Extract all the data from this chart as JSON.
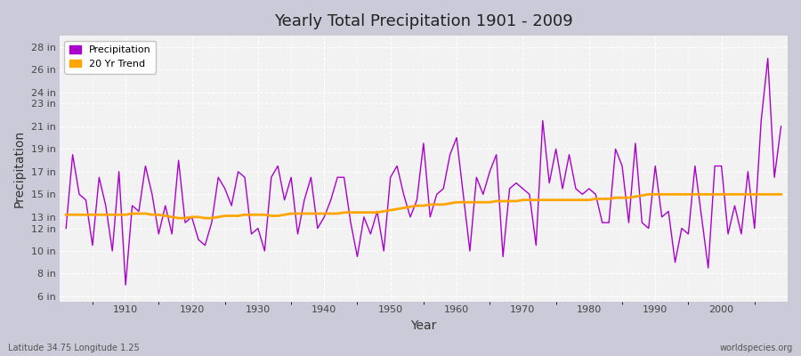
{
  "title": "Yearly Total Precipitation 1901 - 2009",
  "xlabel": "Year",
  "ylabel": "Precipitation",
  "lat_lon_label": "Latitude 34.75 Longitude 1.25",
  "watermark": "worldspecies.org",
  "precipitation_color": "#AA00CC",
  "trend_color": "#FFA500",
  "bg_color": "#F0F0F0",
  "fig_bg_color": "#E0E0E8",
  "years": [
    1901,
    1902,
    1903,
    1904,
    1905,
    1906,
    1907,
    1908,
    1909,
    1910,
    1911,
    1912,
    1913,
    1914,
    1915,
    1916,
    1917,
    1918,
    1919,
    1920,
    1921,
    1922,
    1923,
    1924,
    1925,
    1926,
    1927,
    1928,
    1929,
    1930,
    1931,
    1932,
    1933,
    1934,
    1935,
    1936,
    1937,
    1938,
    1939,
    1940,
    1941,
    1942,
    1943,
    1944,
    1945,
    1946,
    1947,
    1948,
    1949,
    1950,
    1951,
    1952,
    1953,
    1954,
    1955,
    1956,
    1957,
    1958,
    1959,
    1960,
    1961,
    1962,
    1963,
    1964,
    1965,
    1966,
    1967,
    1968,
    1969,
    1970,
    1971,
    1972,
    1973,
    1974,
    1975,
    1976,
    1977,
    1978,
    1979,
    1980,
    1981,
    1982,
    1983,
    1984,
    1985,
    1986,
    1987,
    1988,
    1989,
    1990,
    1991,
    1992,
    1993,
    1994,
    1995,
    1996,
    1997,
    1998,
    1999,
    2000,
    2001,
    2002,
    2003,
    2004,
    2005,
    2006,
    2007,
    2008,
    2009
  ],
  "precipitation": [
    12.0,
    18.5,
    15.0,
    14.5,
    10.5,
    16.5,
    14.0,
    10.0,
    17.0,
    7.0,
    14.0,
    13.5,
    17.5,
    15.0,
    11.5,
    14.0,
    11.5,
    18.0,
    12.5,
    13.0,
    11.0,
    10.5,
    12.5,
    16.5,
    15.5,
    14.0,
    17.0,
    16.5,
    11.5,
    12.0,
    10.0,
    16.5,
    17.5,
    14.5,
    16.5,
    11.5,
    14.5,
    16.5,
    12.0,
    13.0,
    14.5,
    16.5,
    16.5,
    12.5,
    9.5,
    13.0,
    11.5,
    13.5,
    10.0,
    16.5,
    17.5,
    15.0,
    13.0,
    14.5,
    19.5,
    13.0,
    15.0,
    15.5,
    18.5,
    20.0,
    15.0,
    10.0,
    16.5,
    15.0,
    17.0,
    18.5,
    9.5,
    15.5,
    16.0,
    15.5,
    15.0,
    10.5,
    21.5,
    16.0,
    19.0,
    15.5,
    18.5,
    15.5,
    15.0,
    15.5,
    15.0,
    12.5,
    12.5,
    19.0,
    17.5,
    12.5,
    19.5,
    12.5,
    12.0,
    17.5,
    13.0,
    13.5,
    9.0,
    12.0,
    11.5,
    17.5,
    13.0,
    8.5,
    17.5,
    17.5,
    11.5,
    14.0,
    11.5,
    17.0,
    12.0,
    21.5,
    27.0,
    16.5,
    21.0
  ],
  "trend": [
    13.2,
    13.2,
    13.2,
    13.2,
    13.2,
    13.2,
    13.2,
    13.2,
    13.2,
    13.2,
    13.3,
    13.3,
    13.3,
    13.2,
    13.2,
    13.1,
    13.0,
    12.9,
    12.9,
    13.0,
    13.0,
    12.9,
    12.9,
    13.0,
    13.1,
    13.1,
    13.1,
    13.2,
    13.2,
    13.2,
    13.2,
    13.1,
    13.1,
    13.2,
    13.3,
    13.3,
    13.3,
    13.3,
    13.3,
    13.3,
    13.3,
    13.3,
    13.4,
    13.4,
    13.4,
    13.4,
    13.4,
    13.4,
    13.5,
    13.6,
    13.7,
    13.8,
    13.9,
    14.0,
    14.0,
    14.1,
    14.1,
    14.1,
    14.2,
    14.3,
    14.3,
    14.3,
    14.3,
    14.3,
    14.3,
    14.4,
    14.4,
    14.4,
    14.4,
    14.5,
    14.5,
    14.5,
    14.5,
    14.5,
    14.5,
    14.5,
    14.5,
    14.5,
    14.5,
    14.5,
    14.6,
    14.6,
    14.6,
    14.7,
    14.7,
    14.7,
    14.8,
    14.9,
    15.0,
    15.0,
    15.0,
    15.0,
    15.0,
    15.0,
    15.0,
    15.0,
    15.0,
    15.0,
    15.0,
    15.0,
    15.0,
    15.0,
    15.0,
    15.0,
    15.0,
    15.0,
    15.0,
    15.0,
    15.0
  ],
  "yticks": [
    6,
    8,
    10,
    12,
    13,
    15,
    17,
    19,
    21,
    23,
    24,
    26,
    28
  ],
  "ytick_labels": [
    "6 in",
    "8 in",
    "10 in",
    "12 in",
    "13 in",
    "15 in",
    "17 in",
    "19 in",
    "21 in",
    "23 in",
    "24 in",
    "26 in",
    "28 in"
  ],
  "ylim": [
    5.5,
    29
  ],
  "xlim": [
    1900,
    2010
  ]
}
